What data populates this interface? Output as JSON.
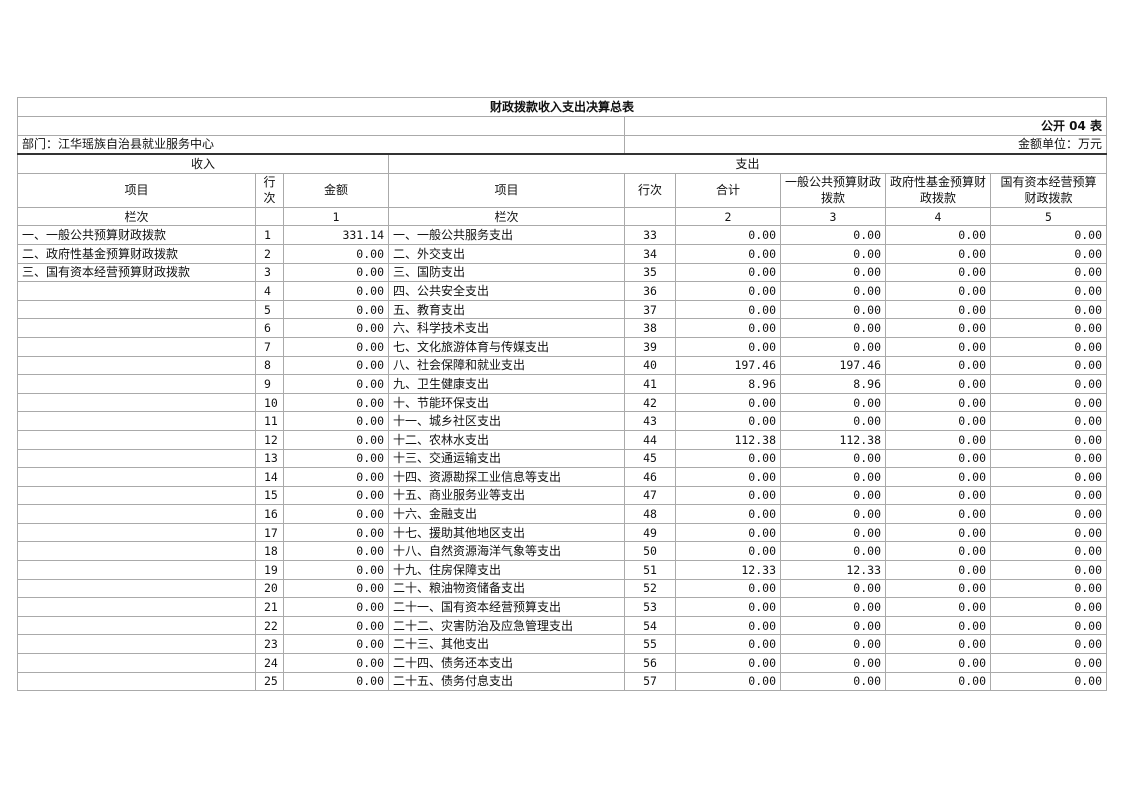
{
  "title": "财政拨款收入支出决算总表",
  "form_code": "公开 04 表",
  "department": "部门：江华瑶族自治县就业服务中心",
  "unit": "金额单位：万元",
  "income_header": "收入",
  "expense_header": "支出",
  "columns": {
    "income_item": "项目",
    "income_row": "行次",
    "income_amount": "金额",
    "expense_item": "项目",
    "expense_row": "行次",
    "total": "合计",
    "general": "一般公共预算财政拨款",
    "gov_fund": "政府性基金预算财政拨款",
    "state_capital": "国有资本经营预算财政拨款"
  },
  "column_index": {
    "label": "栏次",
    "income_amount": "1",
    "expense_label": "栏次",
    "total": "2",
    "general": "3",
    "gov_fund": "4",
    "state_capital": "5"
  },
  "rows": [
    [
      "一、一般公共预算财政拨款",
      "1",
      "331.14",
      "一、一般公共服务支出",
      "33",
      "0.00",
      "0.00",
      "0.00",
      "0.00"
    ],
    [
      "二、政府性基金预算财政拨款",
      "2",
      "0.00",
      "二、外交支出",
      "34",
      "0.00",
      "0.00",
      "0.00",
      "0.00"
    ],
    [
      "三、国有资本经营预算财政拨款",
      "3",
      "0.00",
      "三、国防支出",
      "35",
      "0.00",
      "0.00",
      "0.00",
      "0.00"
    ],
    [
      "",
      "4",
      "0.00",
      "四、公共安全支出",
      "36",
      "0.00",
      "0.00",
      "0.00",
      "0.00"
    ],
    [
      "",
      "5",
      "0.00",
      "五、教育支出",
      "37",
      "0.00",
      "0.00",
      "0.00",
      "0.00"
    ],
    [
      "",
      "6",
      "0.00",
      "六、科学技术支出",
      "38",
      "0.00",
      "0.00",
      "0.00",
      "0.00"
    ],
    [
      "",
      "7",
      "0.00",
      "七、文化旅游体育与传媒支出",
      "39",
      "0.00",
      "0.00",
      "0.00",
      "0.00"
    ],
    [
      "",
      "8",
      "0.00",
      "八、社会保障和就业支出",
      "40",
      "197.46",
      "197.46",
      "0.00",
      "0.00"
    ],
    [
      "",
      "9",
      "0.00",
      "九、卫生健康支出",
      "41",
      "8.96",
      "8.96",
      "0.00",
      "0.00"
    ],
    [
      "",
      "10",
      "0.00",
      "十、节能环保支出",
      "42",
      "0.00",
      "0.00",
      "0.00",
      "0.00"
    ],
    [
      "",
      "11",
      "0.00",
      "十一、城乡社区支出",
      "43",
      "0.00",
      "0.00",
      "0.00",
      "0.00"
    ],
    [
      "",
      "12",
      "0.00",
      "十二、农林水支出",
      "44",
      "112.38",
      "112.38",
      "0.00",
      "0.00"
    ],
    [
      "",
      "13",
      "0.00",
      "十三、交通运输支出",
      "45",
      "0.00",
      "0.00",
      "0.00",
      "0.00"
    ],
    [
      "",
      "14",
      "0.00",
      "十四、资源勘探工业信息等支出",
      "46",
      "0.00",
      "0.00",
      "0.00",
      "0.00"
    ],
    [
      "",
      "15",
      "0.00",
      "十五、商业服务业等支出",
      "47",
      "0.00",
      "0.00",
      "0.00",
      "0.00"
    ],
    [
      "",
      "16",
      "0.00",
      "十六、金融支出",
      "48",
      "0.00",
      "0.00",
      "0.00",
      "0.00"
    ],
    [
      "",
      "17",
      "0.00",
      "十七、援助其他地区支出",
      "49",
      "0.00",
      "0.00",
      "0.00",
      "0.00"
    ],
    [
      "",
      "18",
      "0.00",
      "十八、自然资源海洋气象等支出",
      "50",
      "0.00",
      "0.00",
      "0.00",
      "0.00"
    ],
    [
      "",
      "19",
      "0.00",
      "十九、住房保障支出",
      "51",
      "12.33",
      "12.33",
      "0.00",
      "0.00"
    ],
    [
      "",
      "20",
      "0.00",
      "二十、粮油物资储备支出",
      "52",
      "0.00",
      "0.00",
      "0.00",
      "0.00"
    ],
    [
      "",
      "21",
      "0.00",
      "二十一、国有资本经营预算支出",
      "53",
      "0.00",
      "0.00",
      "0.00",
      "0.00"
    ],
    [
      "",
      "22",
      "0.00",
      "二十二、灾害防治及应急管理支出",
      "54",
      "0.00",
      "0.00",
      "0.00",
      "0.00"
    ],
    [
      "",
      "23",
      "0.00",
      "二十三、其他支出",
      "55",
      "0.00",
      "0.00",
      "0.00",
      "0.00"
    ],
    [
      "",
      "24",
      "0.00",
      "二十四、债务还本支出",
      "56",
      "0.00",
      "0.00",
      "0.00",
      "0.00"
    ],
    [
      "",
      "25",
      "0.00",
      "二十五、债务付息支出",
      "57",
      "0.00",
      "0.00",
      "0.00",
      "0.00"
    ]
  ]
}
